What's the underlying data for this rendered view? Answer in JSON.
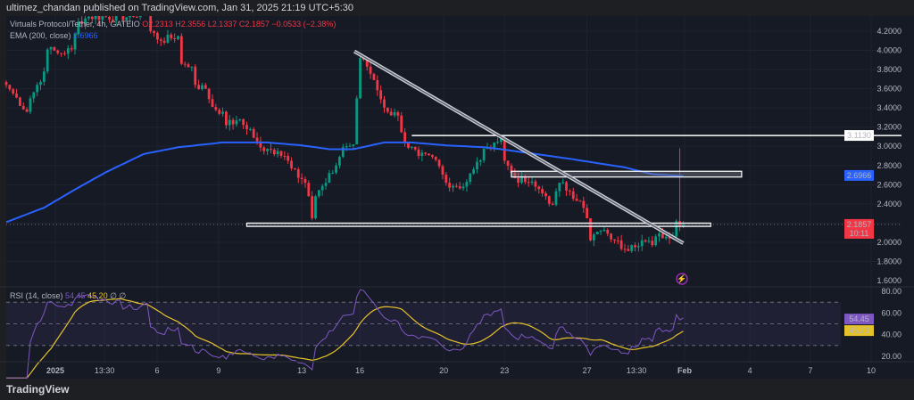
{
  "publisher": "ultimez_chandan published on TradingView.com, Jan 31, 2025 21:19 UTC+5:30",
  "footer": {
    "logo": "TradingView"
  },
  "legend": {
    "symbol": "Virtuals Protocol/Tether, 4h, GATEIO",
    "o": "O2.2313",
    "h": "H2.3556",
    "l": "L2.1337",
    "c": "C2.1857",
    "change": "−0.0533 (−2.38%)",
    "ema": "EMA (200, close)",
    "ema_value": "2.6966",
    "rsi": "RSI (14, close)",
    "rsi_value": "54.45",
    "rsi_ma_value": "45.20",
    "rsi_extra": "∅ ∅"
  },
  "colors": {
    "up": "#089981",
    "down": "#f23645",
    "ema": "#2962ff",
    "rsi": "#7e57c2",
    "rsi_ma": "#e6c229",
    "bg": "#161a25"
  },
  "chart_data": {
    "type": "candlestick",
    "title": "Virtuals Protocol/Tether, 4h, GATEIO",
    "ylim": [
      1.55,
      4.25
    ],
    "price_ticks": [
      "4.2000",
      "4.0000",
      "3.8000",
      "3.6000",
      "3.4000",
      "3.2000",
      "3.0000",
      "2.8000",
      "2.6000",
      "2.4000",
      "2.0000",
      "1.8000",
      "1.6000"
    ],
    "price_path_bar_price": [
      [
        0,
        3.64
      ],
      [
        2,
        3.55
      ],
      [
        6,
        3.36
      ],
      [
        7,
        3.5
      ],
      [
        11,
        3.78
      ],
      [
        12,
        4.01
      ],
      [
        16,
        3.97
      ],
      [
        19,
        4.01
      ],
      [
        21,
        4.3
      ],
      [
        24,
        4.35
      ],
      [
        37,
        4.35
      ],
      [
        41,
        4.45
      ],
      [
        42,
        4.2
      ],
      [
        45,
        4.1
      ],
      [
        50,
        4.15
      ],
      [
        51,
        3.86
      ],
      [
        54,
        3.83
      ],
      [
        55,
        3.64
      ],
      [
        58,
        3.6
      ],
      [
        60,
        3.41
      ],
      [
        63,
        3.36
      ],
      [
        64,
        3.22
      ],
      [
        67,
        3.27
      ],
      [
        71,
        3.18
      ],
      [
        72,
        3.09
      ],
      [
        75,
        2.95
      ],
      [
        79,
        2.95
      ],
      [
        81,
        2.9
      ],
      [
        84,
        2.76
      ],
      [
        87,
        2.62
      ],
      [
        88,
        2.48
      ],
      [
        89,
        2.25
      ],
      [
        90,
        2.48
      ],
      [
        93,
        2.62
      ],
      [
        96,
        2.8
      ],
      [
        98,
        2.99
      ],
      [
        101,
        3.02
      ],
      [
        102,
        3.5
      ],
      [
        103,
        3.92
      ],
      [
        105,
        3.83
      ],
      [
        107,
        3.69
      ],
      [
        109,
        3.49
      ],
      [
        111,
        3.36
      ],
      [
        114,
        3.32
      ],
      [
        116,
        3.04
      ],
      [
        120,
        2.9
      ],
      [
        125,
        2.86
      ],
      [
        128,
        2.62
      ],
      [
        133,
        2.58
      ],
      [
        136,
        2.76
      ],
      [
        140,
        2.99
      ],
      [
        142,
        3.04
      ],
      [
        144,
        3.08
      ],
      [
        145,
        2.85
      ],
      [
        148,
        2.67
      ],
      [
        152,
        2.62
      ],
      [
        154,
        2.58
      ],
      [
        157,
        2.48
      ],
      [
        159,
        2.39
      ],
      [
        161,
        2.62
      ],
      [
        164,
        2.53
      ],
      [
        167,
        2.43
      ],
      [
        169,
        2.25
      ],
      [
        170,
        2.02
      ],
      [
        172,
        2.11
      ],
      [
        175,
        2.09
      ],
      [
        177,
        2.02
      ],
      [
        180,
        1.93
      ],
      [
        182,
        1.97
      ],
      [
        185,
        2.02
      ],
      [
        188,
        1.97
      ],
      [
        190,
        2.09
      ],
      [
        193,
        2.04
      ],
      [
        194,
        2.06
      ],
      [
        195,
        2.22
      ],
      [
        197,
        2.19
      ]
    ],
    "spike_high": 2.98,
    "ema200_bar_price": [
      [
        0,
        2.21
      ],
      [
        11,
        2.36
      ],
      [
        20,
        2.55
      ],
      [
        29,
        2.73
      ],
      [
        40,
        2.92
      ],
      [
        50,
        2.99
      ],
      [
        63,
        3.04
      ],
      [
        76,
        3.04
      ],
      [
        86,
        3.01
      ],
      [
        94,
        2.97
      ],
      [
        101,
        2.97
      ],
      [
        110,
        3.04
      ],
      [
        118,
        3.04
      ],
      [
        128,
        3.01
      ],
      [
        139,
        2.99
      ],
      [
        144,
        2.97
      ],
      [
        154,
        2.92
      ],
      [
        164,
        2.87
      ],
      [
        180,
        2.78
      ],
      [
        188,
        2.71
      ],
      [
        197,
        2.69
      ]
    ],
    "markers": {
      "horizontal_level": {
        "price": 3.113,
        "label": "3.1130",
        "from_bar": 118
      },
      "ema_label": "2.6966",
      "last_price_label": "2.1857",
      "countdown": "10:11",
      "trendline": {
        "from": [
          101.3,
          3.99
        ],
        "to": [
          197,
          1.99
        ]
      },
      "zones": [
        {
          "from_bar": 147,
          "to_bar": 214,
          "low": 2.68,
          "high": 2.74
        },
        {
          "from_bar": 70,
          "to_bar": 205,
          "low": 2.165,
          "high": 2.2
        }
      ]
    },
    "time_ticks": [
      {
        "bar": 14.3,
        "label": "2025"
      },
      {
        "bar": 28.6,
        "label": "13:30"
      },
      {
        "bar": 43.9,
        "label": "6"
      },
      {
        "bar": 61.8,
        "label": "9"
      },
      {
        "bar": 86,
        "label": "13"
      },
      {
        "bar": 102.9,
        "label": "16"
      },
      {
        "bar": 127.3,
        "label": "20"
      },
      {
        "bar": 145,
        "label": "23"
      },
      {
        "bar": 169,
        "label": "27"
      },
      {
        "bar": 183.4,
        "label": "13:30"
      },
      {
        "bar": 197.4,
        "label": "Feb"
      },
      {
        "bar": 216.4,
        "label": "4"
      },
      {
        "bar": 234,
        "label": "7"
      },
      {
        "bar": 251.7,
        "label": "10"
      }
    ],
    "rsi": {
      "ylim": [
        15,
        85
      ],
      "ticks": [
        "80.00",
        "60.00",
        "40.00",
        "20.00"
      ],
      "bands": [
        70,
        50,
        30
      ],
      "last": 54.45,
      "last_ma": 45.2
    }
  }
}
